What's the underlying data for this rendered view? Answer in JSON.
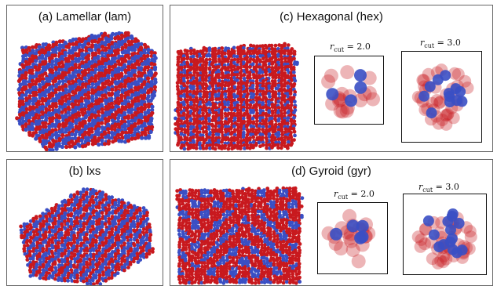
{
  "figure": {
    "panels": [
      {
        "id": "a",
        "title": "(a) Lamellar (lam)"
      },
      {
        "id": "b",
        "title": "(b) lxs"
      },
      {
        "id": "c",
        "title": "(c) Hexagonal (hex)",
        "insets": [
          {
            "label_symbol": "r",
            "label_sub": "cut",
            "label_value": "= 2.0"
          },
          {
            "label_symbol": "r",
            "label_sub": "cut",
            "label_value": "= 3.0"
          }
        ]
      },
      {
        "id": "d",
        "title": "(d) Gyroid (gyr)",
        "insets": [
          {
            "label_symbol": "r",
            "label_sub": "cut",
            "label_value": "= 2.0"
          },
          {
            "label_symbol": "r",
            "label_sub": "cut",
            "label_value": "= 3.0"
          }
        ]
      }
    ],
    "colors": {
      "red_bead": "#c8191e",
      "blue_bead": "#3a4fc4",
      "panel_border": "#666666",
      "inset_border": "#111111"
    }
  }
}
